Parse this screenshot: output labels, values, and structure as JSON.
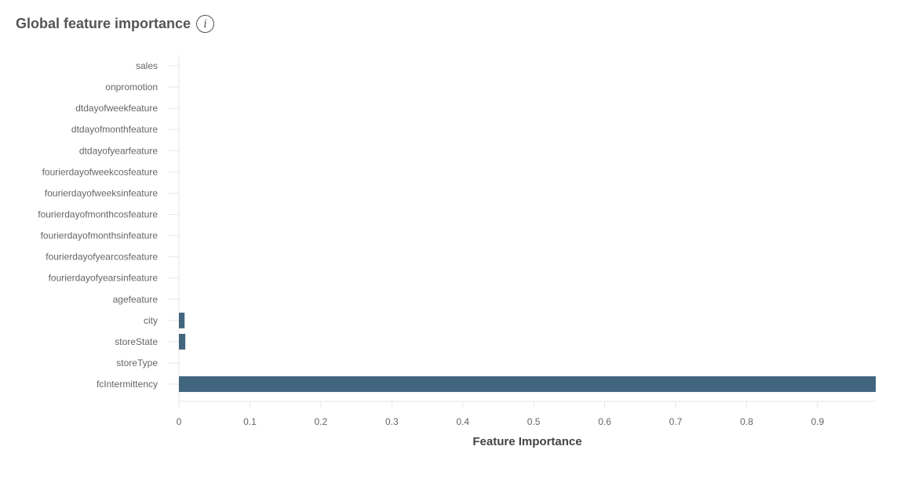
{
  "header": {
    "title": "Global feature importance",
    "info_icon": "info-icon"
  },
  "colors": {
    "bar": "#42657f",
    "axis": "#e6e6e6",
    "text": "#666666"
  },
  "chart_data": {
    "type": "bar",
    "orientation": "horizontal",
    "title": "Global feature importance",
    "xlabel": "Feature Importance",
    "ylabel": "",
    "categories": [
      "sales",
      "onpromotion",
      "dtdayofweekfeature",
      "dtdayofmonthfeature",
      "dtdayofyearfeature",
      "fourierdayofweekcosfeature",
      "fourierdayofweeksinfeature",
      "fourierdayofmonthcosfeature",
      "fourierdayofmonthsinfeature",
      "fourierdayofyearcosfeature",
      "fourierdayofyearsinfeature",
      "agefeature",
      "city",
      "storeState",
      "storeType",
      "fcIntermittency"
    ],
    "values": [
      0,
      0,
      0,
      0,
      0,
      0,
      0,
      0,
      0,
      0,
      0,
      0,
      0.008,
      0.009,
      0,
      0.982
    ],
    "xlim": [
      0,
      0.982
    ],
    "xticks": [
      0,
      0.1,
      0.2,
      0.3,
      0.4,
      0.5,
      0.6,
      0.7,
      0.8,
      0.9
    ],
    "xtick_labels": [
      "0",
      "0.1",
      "0.2",
      "0.3",
      "0.4",
      "0.5",
      "0.6",
      "0.7",
      "0.8",
      "0.9"
    ],
    "grid": false,
    "legend": "none"
  }
}
